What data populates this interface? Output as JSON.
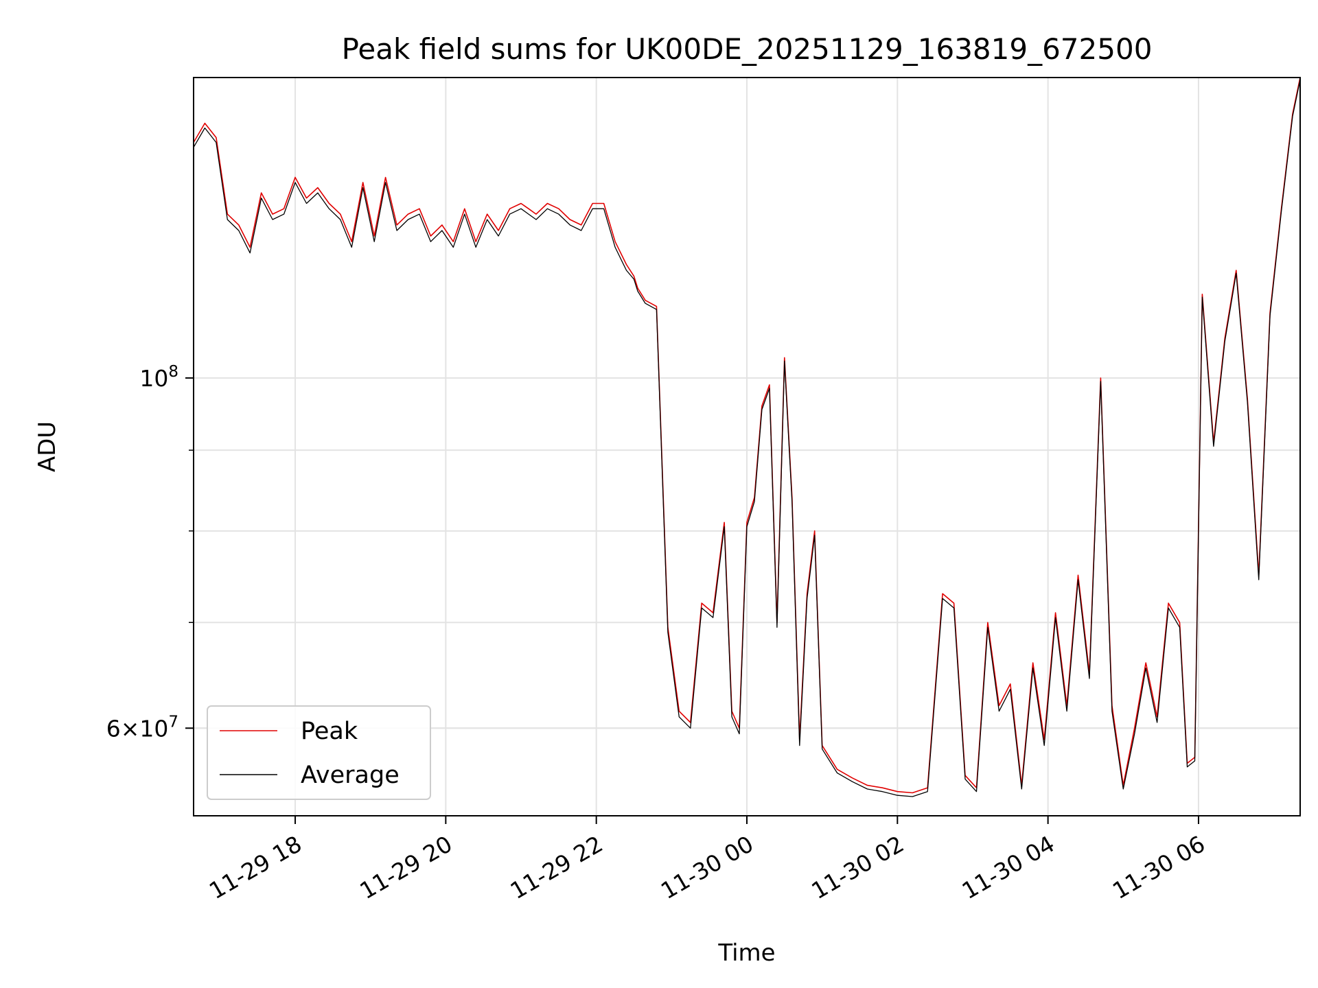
{
  "chart_data": {
    "type": "line",
    "title": "Peak field sums for UK00DE_20251129_163819_672500",
    "xlabel": "Time",
    "ylabel": "ADU",
    "yscale": "log",
    "ylim": [
      52800000,
      155000000
    ],
    "xlim_hours": [
      16.65,
      31.35
    ],
    "grid": true,
    "legend_loc": "lower left",
    "x_ticks": [
      {
        "hour": 18,
        "label": "11-29 18"
      },
      {
        "hour": 20,
        "label": "11-29 20"
      },
      {
        "hour": 22,
        "label": "11-29 22"
      },
      {
        "hour": 24,
        "label": "11-30 00"
      },
      {
        "hour": 26,
        "label": "11-30 02"
      },
      {
        "hour": 28,
        "label": "11-30 04"
      },
      {
        "hour": 30,
        "label": "11-30 06"
      }
    ],
    "y_major_ticks": [
      {
        "value": 100000000,
        "base": "10",
        "exp": "8"
      },
      {
        "value": 60000000,
        "mant": "6",
        "base": "10",
        "exp": "7"
      }
    ],
    "y_minor_ticks": [
      60000000,
      70000000,
      80000000,
      90000000
    ],
    "x_hours": [
      16.65,
      16.8,
      16.95,
      17.1,
      17.25,
      17.4,
      17.55,
      17.7,
      17.85,
      18.0,
      18.15,
      18.3,
      18.45,
      18.6,
      18.75,
      18.9,
      19.05,
      19.2,
      19.35,
      19.5,
      19.65,
      19.8,
      19.95,
      20.1,
      20.25,
      20.4,
      20.55,
      20.7,
      20.85,
      21.0,
      21.1,
      21.2,
      21.35,
      21.5,
      21.65,
      21.8,
      21.95,
      22.1,
      22.25,
      22.4,
      22.5,
      22.55,
      22.65,
      22.8,
      22.95,
      23.1,
      23.25,
      23.4,
      23.55,
      23.7,
      23.8,
      23.9,
      24.0,
      24.1,
      24.2,
      24.3,
      24.4,
      24.5,
      24.6,
      24.7,
      24.8,
      24.9,
      25.0,
      25.2,
      25.4,
      25.6,
      25.8,
      26.0,
      26.2,
      26.4,
      26.6,
      26.75,
      26.9,
      27.05,
      27.2,
      27.35,
      27.5,
      27.65,
      27.8,
      27.95,
      28.1,
      28.25,
      28.4,
      28.55,
      28.7,
      28.85,
      29.0,
      29.15,
      29.3,
      29.45,
      29.6,
      29.75,
      29.85,
      29.95,
      30.05,
      30.2,
      30.35,
      30.5,
      30.65,
      30.8,
      30.95,
      31.1,
      31.25,
      31.35
    ],
    "series": [
      {
        "name": "Peak",
        "color": "#e00000",
        "values": [
          141000000,
          145000000,
          142000000,
          127000000,
          125000000,
          121000000,
          131000000,
          127000000,
          128000000,
          134000000,
          130000000,
          132000000,
          129000000,
          127000000,
          122000000,
          133000000,
          123000000,
          134000000,
          125000000,
          127000000,
          128000000,
          123000000,
          125000000,
          122000000,
          128000000,
          122000000,
          127000000,
          124000000,
          128000000,
          129000000,
          128000000,
          127000000,
          129000000,
          128000000,
          126000000,
          125000000,
          129000000,
          129000000,
          122000000,
          118000000,
          116000000,
          114000000,
          112000000,
          111000000,
          69500000,
          61500000,
          60500000,
          72000000,
          71000000,
          81000000,
          61500000,
          60000000,
          81000000,
          84000000,
          96000000,
          99000000,
          70000000,
          103000000,
          84000000,
          59000000,
          73000000,
          80000000,
          58500000,
          56500000,
          55800000,
          55200000,
          55000000,
          54700000,
          54600000,
          55000000,
          73000000,
          72000000,
          56000000,
          55000000,
          70000000,
          62000000,
          64000000,
          55200000,
          66000000,
          59000000,
          71000000,
          62000000,
          75000000,
          65000000,
          100000000,
          62000000,
          55200000,
          60000000,
          66000000,
          61000000,
          72000000,
          70000000,
          57000000,
          57500000,
          113000000,
          91000000,
          106000000,
          117000000,
          97000000,
          75000000,
          110000000,
          128000000,
          147000000,
          155000000
        ]
      },
      {
        "name": "Average",
        "color": "#000000",
        "values": [
          140000000,
          144000000,
          141000000,
          126000000,
          124000000,
          120000000,
          130000000,
          126000000,
          127000000,
          133000000,
          129000000,
          131000000,
          128000000,
          126000000,
          121000000,
          132000000,
          122000000,
          133000000,
          124000000,
          126000000,
          127000000,
          122000000,
          124000000,
          121000000,
          127000000,
          121000000,
          126000000,
          123000000,
          127000000,
          128000000,
          127000000,
          126000000,
          128000000,
          127000000,
          125000000,
          124000000,
          128000000,
          128000000,
          121000000,
          117000000,
          115500000,
          113500000,
          111500000,
          110500000,
          69000000,
          61000000,
          60000000,
          71500000,
          70500000,
          80500000,
          61000000,
          59500000,
          80500000,
          83500000,
          95500000,
          98500000,
          69500000,
          102500000,
          83500000,
          58500000,
          72500000,
          79500000,
          58200000,
          56200000,
          55500000,
          54900000,
          54700000,
          54400000,
          54300000,
          54700000,
          72500000,
          71500000,
          55700000,
          54700000,
          69500000,
          61500000,
          63500000,
          54900000,
          65500000,
          58500000,
          70500000,
          61500000,
          74500000,
          64500000,
          99500000,
          61500000,
          54900000,
          59500000,
          65500000,
          60500000,
          71500000,
          69500000,
          56700000,
          57200000,
          112500000,
          90500000,
          105500000,
          116500000,
          96500000,
          74500000,
          109500000,
          127500000,
          146500000,
          154500000
        ]
      }
    ]
  }
}
